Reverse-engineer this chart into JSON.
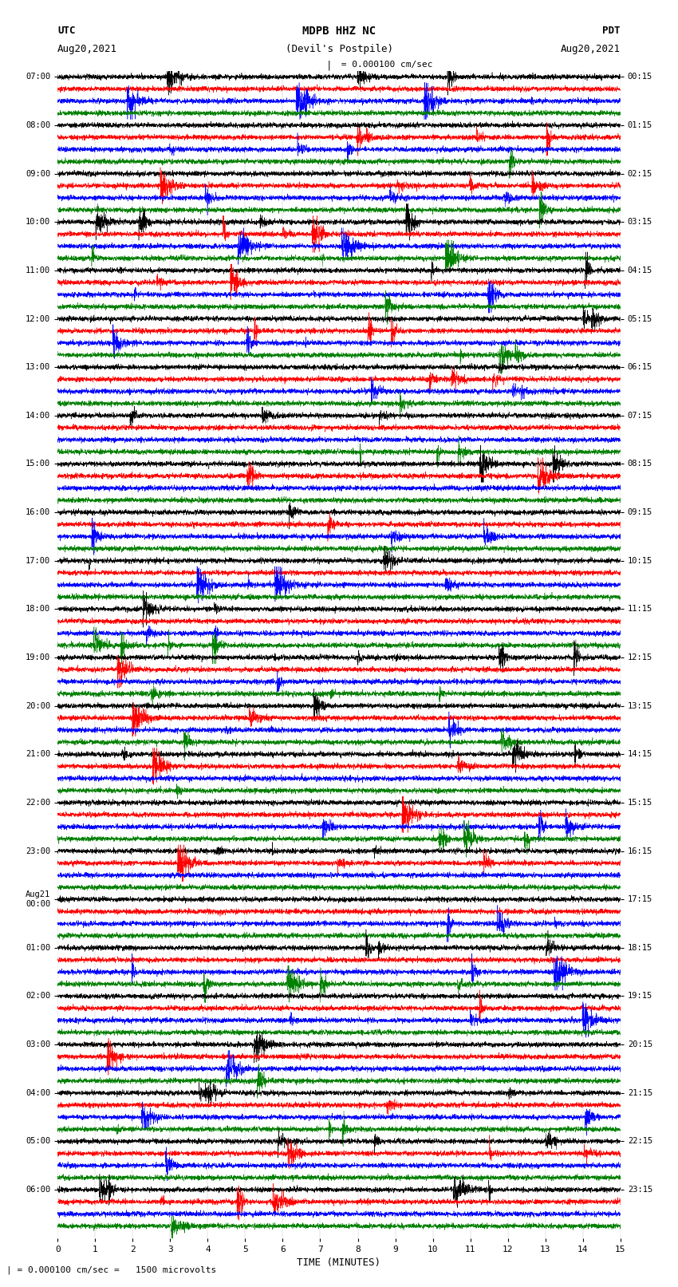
{
  "title_line1": "MDPB HHZ NC",
  "title_line2": "(Devil's Postpile)",
  "scale_text": "= 0.000100 cm/sec",
  "footer_text": "= 0.000100 cm/sec =   1500 microvolts",
  "left_header": "UTC",
  "left_subheader": "Aug20,2021",
  "right_header": "PDT",
  "right_subheader": "Aug20,2021",
  "xlabel": "TIME (MINUTES)",
  "utc_labels": [
    "07:00",
    "08:00",
    "09:00",
    "10:00",
    "11:00",
    "12:00",
    "13:00",
    "14:00",
    "15:00",
    "16:00",
    "17:00",
    "18:00",
    "19:00",
    "20:00",
    "21:00",
    "22:00",
    "23:00",
    "Aug21\n00:00",
    "01:00",
    "02:00",
    "03:00",
    "04:00",
    "05:00",
    "06:00"
  ],
  "pdt_labels": [
    "00:15",
    "01:15",
    "02:15",
    "03:15",
    "04:15",
    "05:15",
    "06:15",
    "07:15",
    "08:15",
    "09:15",
    "10:15",
    "11:15",
    "12:15",
    "13:15",
    "14:15",
    "15:15",
    "16:15",
    "17:15",
    "18:15",
    "19:15",
    "20:15",
    "21:15",
    "22:15",
    "23:15"
  ],
  "colors": [
    "black",
    "red",
    "blue",
    "green"
  ],
  "n_hours": 24,
  "traces_per_hour": 4,
  "n_cols": 4500,
  "xmin": 0,
  "xmax": 15,
  "background": "white",
  "figwidth": 8.5,
  "figheight": 16.13
}
